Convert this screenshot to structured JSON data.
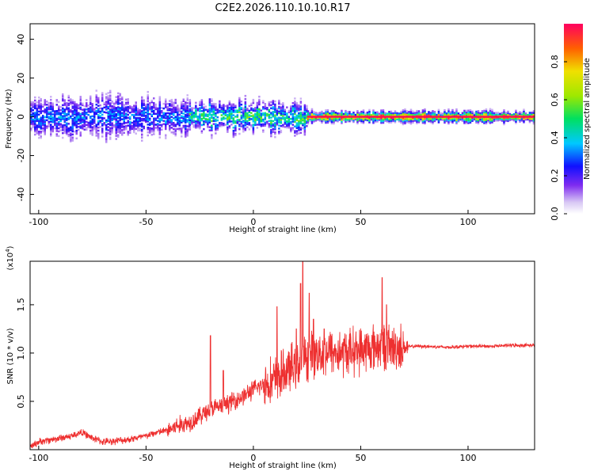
{
  "figure": {
    "title": "C2E2.2026.110.10.10.R17"
  },
  "chart_data": [
    {
      "type": "heatmap",
      "title": "C2E2.2026.110.10.10.R17",
      "xlabel": "Height of straight line (km)",
      "ylabel": "Frequency (Hz)",
      "xlim": [
        -104,
        131
      ],
      "ylim": [
        -50,
        48
      ],
      "x_ticks": [
        -100,
        -50,
        0,
        50,
        100
      ],
      "x_tick_labels": [
        "-100",
        "-50",
        "0",
        "50",
        "100"
      ],
      "y_ticks": [
        -40,
        -20,
        0,
        20,
        40
      ],
      "y_tick_labels": [
        "-40",
        "-20",
        "0",
        "20",
        "40"
      ],
      "colorbar": {
        "label": "Normalized spectral amplitude",
        "range": [
          0,
          1
        ],
        "ticks": [
          0.0,
          0.2,
          0.4,
          0.6,
          0.8
        ],
        "tick_labels": [
          "0.0",
          "0.2",
          "0.4",
          "0.6",
          "0.8"
        ],
        "colormap": "rainbow"
      },
      "bands": [
        {
          "x_from": -104,
          "x_to": -30,
          "center_hz": 0,
          "half_width_hz": 8,
          "peak_amplitude": 0.35
        },
        {
          "x_from": -30,
          "x_to": 25,
          "center_hz": 0,
          "half_width_hz": 6,
          "peak_amplitude": 0.55
        },
        {
          "x_from": 25,
          "x_to": 131,
          "center_hz": 0,
          "half_width_hz": 2,
          "peak_amplitude": 0.98
        }
      ],
      "grid": false
    },
    {
      "type": "line",
      "xlabel": "Height of straight line (km)",
      "ylabel": "SNR (10 * v/v)",
      "y_scale_note": "(x10",
      "y_scale_exponent": "4",
      "xlim": [
        -104,
        131
      ],
      "ylim": [
        0,
        1.95
      ],
      "x_ticks": [
        -100,
        -50,
        0,
        50,
        100
      ],
      "x_tick_labels": [
        "-100",
        "-50",
        "0",
        "50",
        "100"
      ],
      "y_ticks": [
        0.5,
        1.0,
        1.5
      ],
      "y_tick_labels": [
        "0.5",
        "1.0",
        "1.5"
      ],
      "series": [
        {
          "color": "#ee3030",
          "x": [
            -104,
            -100,
            -95,
            -90,
            -85,
            -80,
            -75,
            -70,
            -65,
            -60,
            -55,
            -50,
            -45,
            -40,
            -35,
            -30,
            -25,
            -20,
            -15,
            -10,
            -5,
            0,
            5,
            10,
            15,
            20,
            25,
            30,
            35,
            40,
            45,
            50,
            55,
            60,
            65,
            70,
            75,
            80,
            90,
            100,
            110,
            120,
            131
          ],
          "y": [
            0.03,
            0.08,
            0.1,
            0.12,
            0.14,
            0.18,
            0.12,
            0.08,
            0.09,
            0.1,
            0.12,
            0.14,
            0.18,
            0.2,
            0.25,
            0.28,
            0.35,
            0.42,
            0.45,
            0.5,
            0.55,
            0.62,
            0.68,
            0.72,
            0.8,
            0.88,
            0.95,
            1.0,
            1.02,
            1.0,
            1.02,
            1.03,
            1.05,
            1.08,
            1.05,
            1.06,
            1.07,
            1.07,
            1.06,
            1.07,
            1.07,
            1.08,
            1.08
          ]
        }
      ],
      "spikes": [
        {
          "x": -20,
          "y": 1.18
        },
        {
          "x": -14,
          "y": 0.82
        },
        {
          "x": 11,
          "y": 1.48
        },
        {
          "x": 20,
          "y": 1.25
        },
        {
          "x": 22,
          "y": 1.72
        },
        {
          "x": 23,
          "y": 1.96
        },
        {
          "x": 26,
          "y": 1.62
        },
        {
          "x": 28,
          "y": 1.35
        },
        {
          "x": 33,
          "y": 1.25
        },
        {
          "x": 60,
          "y": 1.78
        },
        {
          "x": 62,
          "y": 1.5
        },
        {
          "x": 64,
          "y": 1.15
        }
      ],
      "grid": false
    }
  ]
}
